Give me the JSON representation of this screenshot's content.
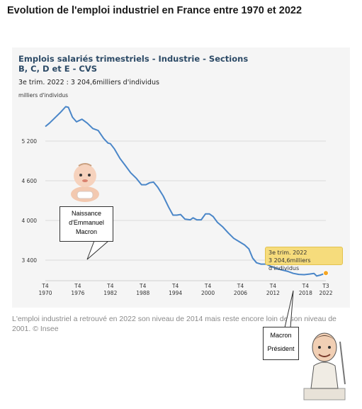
{
  "page": {
    "title": "Evolution de l'emploi industriel en France entre 1970 et 2022",
    "caption": "L'emploi industriel a retrouvé en 2022 son niveau de 2014 mais reste encore loin de son niveau de 2001. © Insee"
  },
  "annotations": {
    "birth": {
      "line1": "Naissance",
      "line2": "d'Emmanuel",
      "line3": "Macron"
    },
    "president": {
      "line1": "Macron",
      "line2": "Président"
    }
  },
  "tooltip": {
    "line1": "3e trim. 2022",
    "line2": "3 204,6milliers d'individus"
  },
  "colors": {
    "line": "#4a86c8",
    "highlight": "#f5a623",
    "title": "#2c4a66",
    "tooltip_bg": "#f6dc7c"
  },
  "chart_data": {
    "type": "line",
    "title": "Emplois salariés trimestriels - Industrie - Sections B, C, D et E - CVS",
    "subtitle": "3e trim. 2022 : 3 204,6milliers d'individus",
    "ylabel": "milliers d'individus",
    "ylim": [
      3200,
      5800
    ],
    "yticks": [
      3400,
      4000,
      4600,
      5200
    ],
    "ytick_labels": [
      "3 400",
      "4 000",
      "4 600",
      "5 200"
    ],
    "xlim": [
      1970.75,
      2022.5
    ],
    "xticks": [
      {
        "x": 1970.75,
        "q": "T4",
        "year": "1970"
      },
      {
        "x": 1976.75,
        "q": "T4",
        "year": "1976"
      },
      {
        "x": 1982.75,
        "q": "T4",
        "year": "1982"
      },
      {
        "x": 1988.75,
        "q": "T4",
        "year": "1988"
      },
      {
        "x": 1994.75,
        "q": "T4",
        "year": "1994"
      },
      {
        "x": 2000.75,
        "q": "T4",
        "year": "2000"
      },
      {
        "x": 2006.75,
        "q": "T4",
        "year": "2006"
      },
      {
        "x": 2012.75,
        "q": "T4",
        "year": "2012"
      },
      {
        "x": 2018.75,
        "q": "T4",
        "year": "2018"
      },
      {
        "x": 2022.5,
        "q": "T3",
        "year": "2022"
      }
    ],
    "grid": "horizontal",
    "series": [
      {
        "values": [
          [
            1970.75,
            5420
          ],
          [
            1971.5,
            5470
          ],
          [
            1972.5,
            5550
          ],
          [
            1973.5,
            5630
          ],
          [
            1974.5,
            5720
          ],
          [
            1975.0,
            5710
          ],
          [
            1975.75,
            5560
          ],
          [
            1976.5,
            5490
          ],
          [
            1977.5,
            5530
          ],
          [
            1978.5,
            5470
          ],
          [
            1979.5,
            5390
          ],
          [
            1980.5,
            5360
          ],
          [
            1981.5,
            5240
          ],
          [
            1982.3,
            5170
          ],
          [
            1982.75,
            5160
          ],
          [
            1983.5,
            5080
          ],
          [
            1984.5,
            4940
          ],
          [
            1985.5,
            4830
          ],
          [
            1986.5,
            4720
          ],
          [
            1987.5,
            4640
          ],
          [
            1988.5,
            4540
          ],
          [
            1989.3,
            4540
          ],
          [
            1990.0,
            4570
          ],
          [
            1990.7,
            4580
          ],
          [
            1991.5,
            4500
          ],
          [
            1992.5,
            4370
          ],
          [
            1993.5,
            4200
          ],
          [
            1994.3,
            4080
          ],
          [
            1995.0,
            4080
          ],
          [
            1995.7,
            4090
          ],
          [
            1996.5,
            4020
          ],
          [
            1997.5,
            4010
          ],
          [
            1998.0,
            4040
          ],
          [
            1998.7,
            4010
          ],
          [
            1999.5,
            4010
          ],
          [
            2000.3,
            4100
          ],
          [
            2001.0,
            4100
          ],
          [
            2001.7,
            4060
          ],
          [
            2002.5,
            3970
          ],
          [
            2003.5,
            3900
          ],
          [
            2004.5,
            3810
          ],
          [
            2005.5,
            3730
          ],
          [
            2006.5,
            3680
          ],
          [
            2007.5,
            3630
          ],
          [
            2008.3,
            3570
          ],
          [
            2009.0,
            3430
          ],
          [
            2009.7,
            3360
          ],
          [
            2010.5,
            3340
          ],
          [
            2011.5,
            3340
          ],
          [
            2012.5,
            3300
          ],
          [
            2013.5,
            3270
          ],
          [
            2014.5,
            3250
          ],
          [
            2015.5,
            3230
          ],
          [
            2016.5,
            3200
          ],
          [
            2017.5,
            3185
          ],
          [
            2018.5,
            3180
          ],
          [
            2019.5,
            3190
          ],
          [
            2020.3,
            3200
          ],
          [
            2020.8,
            3160
          ],
          [
            2021.5,
            3175
          ],
          [
            2022.5,
            3204.6
          ]
        ]
      }
    ]
  }
}
